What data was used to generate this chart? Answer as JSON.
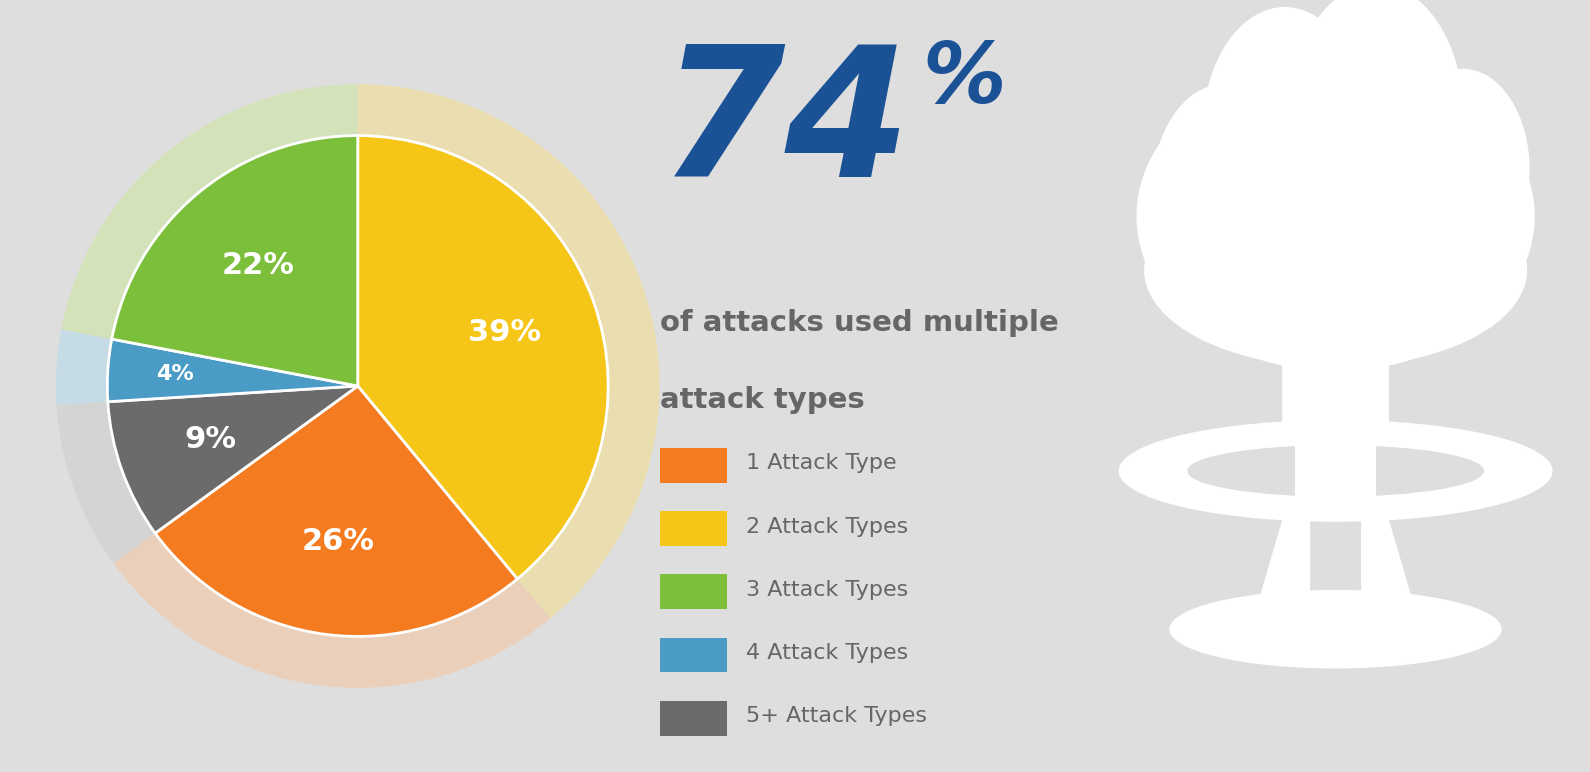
{
  "slices": [
    39,
    26,
    9,
    4,
    22
  ],
  "labels": [
    "39%",
    "26%",
    "9%",
    "4%",
    "22%"
  ],
  "colors": [
    "#F5C518",
    "#F47B20",
    "#6B6B6B",
    "#4A9CC7",
    "#7BBF3A"
  ],
  "glow_colors": [
    "#FAE07A",
    "#F9C090",
    "#C8C8C8",
    "#A8D8EE",
    "#C8E890"
  ],
  "legend_labels": [
    "1 Attack Type",
    "2 Attack Types",
    "3 Attack Types",
    "4 Attack Types",
    "5+ Attack Types"
  ],
  "legend_colors": [
    "#F47B20",
    "#F5C518",
    "#7BBF3A",
    "#4A9CC7",
    "#6B6B6B"
  ],
  "big_number": "74",
  "big_number_color": "#1B5296",
  "percent_sign": "%",
  "subtitle_line1": "of attacks used multiple",
  "subtitle_line2": "attack types",
  "subtitle_color": "#666666",
  "background_color": "#DEDEDE",
  "label_color": "#FFFFFF",
  "cloud_color": "#FFFFFF",
  "startangle": -72,
  "label_fontsize": 20,
  "legend_fontsize": 16
}
